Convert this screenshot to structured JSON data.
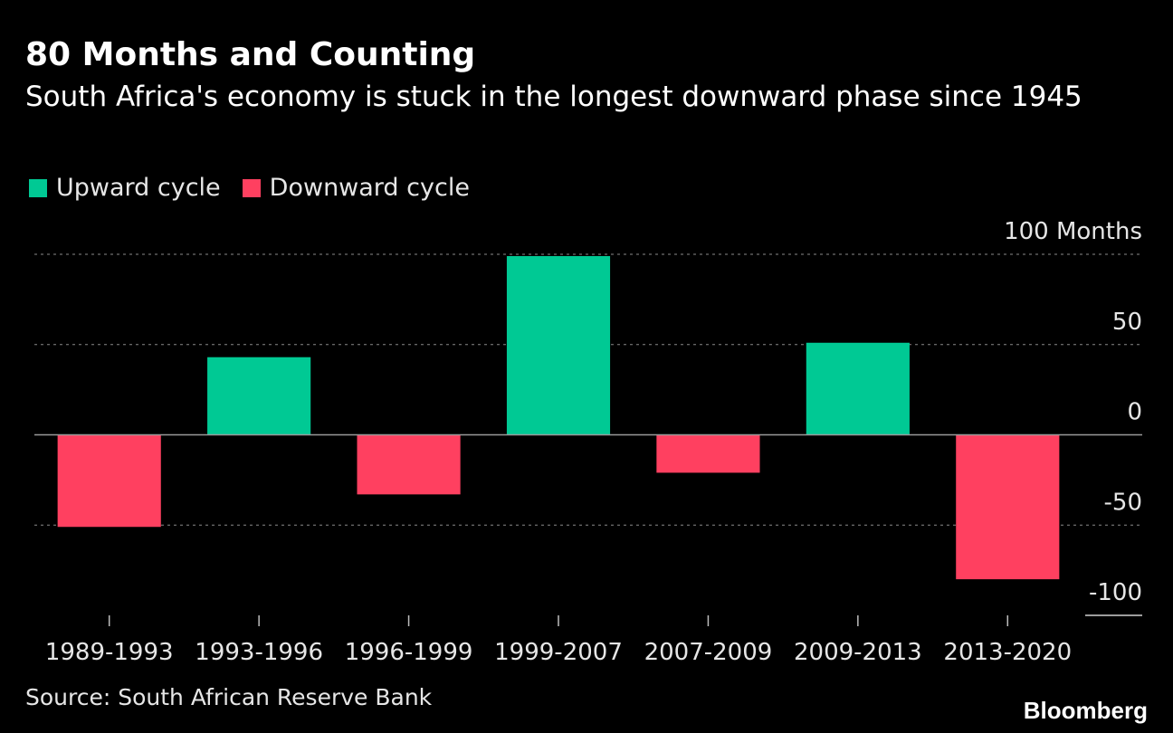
{
  "header": {
    "title": "80 Months and Counting",
    "subtitle": "South Africa's economy is stuck in the longest downward phase since 1945"
  },
  "legend": {
    "items": [
      {
        "label": "Upward cycle",
        "color": "#00c994"
      },
      {
        "label": "Downward cycle",
        "color": "#ff4060"
      }
    ]
  },
  "footer": {
    "source": "Source: South African Reserve Bank",
    "brand": "Bloomberg"
  },
  "chart_data": {
    "type": "bar",
    "categories": [
      "1989-1993",
      "1993-1996",
      "1996-1999",
      "1999-2007",
      "2007-2009",
      "2009-2013",
      "2013-2020"
    ],
    "values": [
      -51,
      43,
      -33,
      99,
      -21,
      51,
      -80
    ],
    "colors": [
      "#ff4060",
      "#00c994",
      "#ff4060",
      "#00c994",
      "#ff4060",
      "#00c994",
      "#ff4060"
    ],
    "ylim": [
      -100,
      100
    ],
    "yticks": [
      100,
      50,
      0,
      -50,
      -100
    ],
    "ytick_labels": [
      "100 Months",
      "50",
      "0",
      "-50",
      "-100"
    ],
    "xlabel": "",
    "ylabel": "",
    "grid": true
  }
}
